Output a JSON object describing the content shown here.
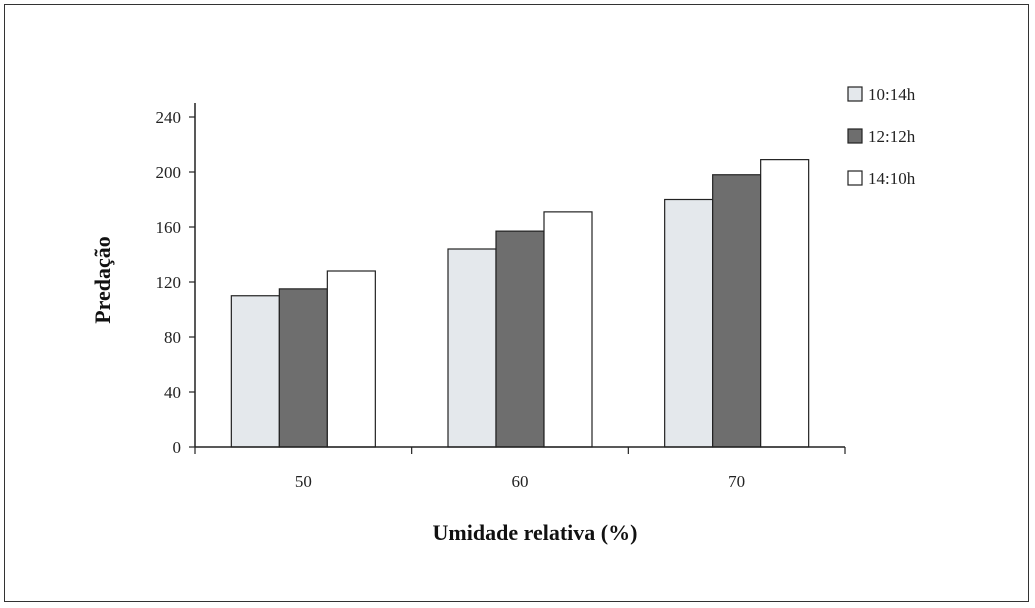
{
  "chart_data": {
    "type": "bar",
    "title": "",
    "xlabel": "Umidade relativa (%)",
    "ylabel": "Predação",
    "categories": [
      "50",
      "60",
      "70"
    ],
    "ylim": [
      0,
      240
    ],
    "yticks": [
      "0",
      "40",
      "80",
      "120",
      "160",
      "200",
      "240"
    ],
    "series": [
      {
        "name": "10:14h",
        "values": [
          110,
          144,
          180
        ],
        "color": "#e4e8ec"
      },
      {
        "name": "12:12h",
        "values": [
          115,
          157,
          198
        ],
        "color": "#6e6e6e"
      },
      {
        "name": "14:10h",
        "values": [
          128,
          171,
          209
        ],
        "color": "#ffffff"
      }
    ],
    "legend_position": "top-right",
    "grid": false
  }
}
